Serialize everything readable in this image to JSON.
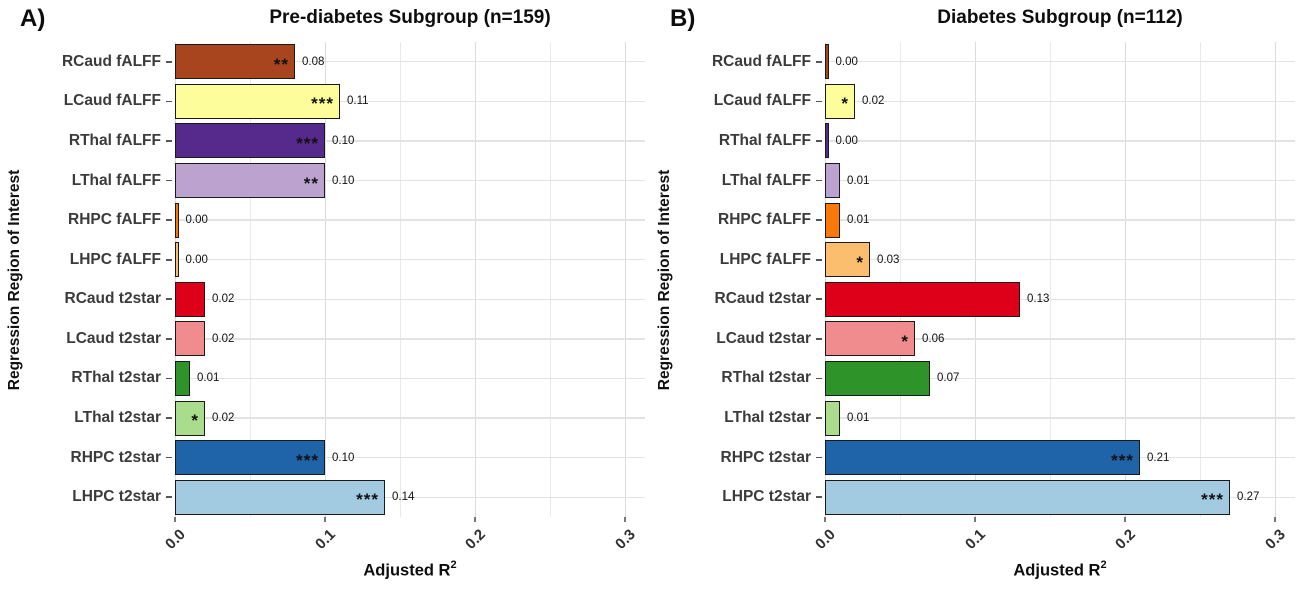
{
  "figure": {
    "background": "#FFFFFF",
    "grid_color_major": "#DCDCDC",
    "grid_color_minor": "#E9E9E9",
    "grid_color_rows": "#E3E3E3",
    "bar_border_color": "#1A1A1A",
    "category_label_color": "#3B3B3B",
    "text_color": "#111111"
  },
  "chart_data": [
    {
      "type": "bar",
      "orientation": "horizontal",
      "panel_label": "A)",
      "title": "Pre-diabetes Subgroup (n=159)",
      "xlabel_base": "Adjusted R",
      "xlabel_sup": "2",
      "ylabel": "Regression Region of Interest",
      "xlim": [
        0,
        0.3
      ],
      "xtick_values": [
        0,
        0.1,
        0.2,
        0.3
      ],
      "xtick_labels": [
        "0.0",
        "0.1",
        "0.2",
        "0.3"
      ],
      "minor_grid_step": 0.05,
      "legend": "none",
      "categories": [
        "RCaud fALFF",
        "LCaud fALFF",
        "RThal fALFF",
        "LThal fALFF",
        "RHPC fALFF",
        "LHPC fALFF",
        "RCaud t2star",
        "LCaud t2star",
        "RThal t2star",
        "LThal t2star",
        "RHPC t2star",
        "LHPC t2star"
      ],
      "values": [
        0.08,
        0.11,
        0.1,
        0.1,
        0.0,
        0.0,
        0.02,
        0.02,
        0.01,
        0.02,
        0.1,
        0.14
      ],
      "value_labels": [
        "0.08",
        "0.11",
        "0.10",
        "0.10",
        "0.00",
        "0.00",
        "0.02",
        "0.02",
        "0.01",
        "0.02",
        "0.10",
        "0.14"
      ],
      "significance": [
        "**",
        "***",
        "***",
        "**",
        "",
        "",
        "",
        "",
        "",
        "*",
        "***",
        "***"
      ],
      "bar_colors": [
        "#A8441E",
        "#FDFD9B",
        "#552A8C",
        "#BCA3CF",
        "#F87908",
        "#FBBE6E",
        "#DE0019",
        "#F18C8E",
        "#2E9328",
        "#A9DD8C",
        "#1F63A8",
        "#A2CBE2"
      ]
    },
    {
      "type": "bar",
      "orientation": "horizontal",
      "panel_label": "B)",
      "title": "Diabetes Subgroup (n=112)",
      "xlabel_base": "Adjusted R",
      "xlabel_sup": "2",
      "ylabel": "Regression Region of Interest",
      "xlim": [
        0,
        0.3
      ],
      "xtick_values": [
        0,
        0.1,
        0.2,
        0.3
      ],
      "xtick_labels": [
        "0.0",
        "0.1",
        "0.2",
        "0.3"
      ],
      "minor_grid_step": 0.05,
      "legend": "none",
      "categories": [
        "RCaud fALFF",
        "LCaud fALFF",
        "RThal fALFF",
        "LThal fALFF",
        "RHPC fALFF",
        "LHPC fALFF",
        "RCaud t2star",
        "LCaud t2star",
        "RThal t2star",
        "LThal t2star",
        "RHPC t2star",
        "LHPC t2star"
      ],
      "values": [
        0.0,
        0.02,
        0.0,
        0.01,
        0.01,
        0.03,
        0.13,
        0.06,
        0.07,
        0.01,
        0.21,
        0.27
      ],
      "value_labels": [
        "0.00",
        "0.02",
        "0.00",
        "0.01",
        "0.01",
        "0.03",
        "0.13",
        "0.06",
        "0.07",
        "0.01",
        "0.21",
        "0.27"
      ],
      "significance": [
        "",
        "*",
        "",
        "",
        "",
        "*",
        "",
        "*",
        "",
        "",
        "***",
        "***"
      ],
      "bar_colors": [
        "#A8441E",
        "#FDFD9B",
        "#552A8C",
        "#BCA3CF",
        "#F87908",
        "#FBBE6E",
        "#DE0019",
        "#F18C8E",
        "#2E9328",
        "#A9DD8C",
        "#1F63A8",
        "#A2CBE2"
      ]
    }
  ]
}
